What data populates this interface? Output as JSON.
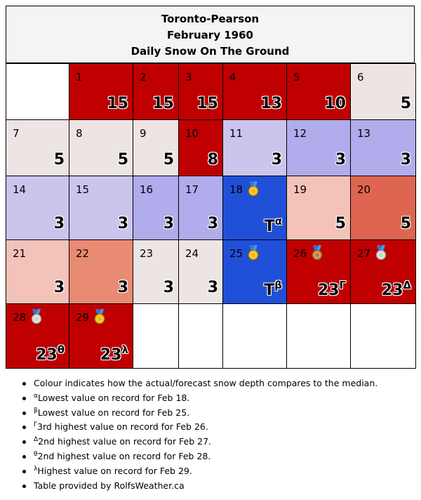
{
  "header": {
    "station": "Toronto-Pearson",
    "month": "February 1960",
    "subtitle": "Daily Snow On The Ground"
  },
  "colors": {
    "blank": "#ffffff",
    "record_high": "#c00000",
    "near_median": "#ede4e4",
    "below_light": "#cbc5ed",
    "below_mid": "#b1aceb",
    "above_light": "#f3c2b8",
    "above_mid": "#e98a73",
    "above_strong": "#de6650",
    "record_low": "#2050d8"
  },
  "calendar": {
    "days": [
      {
        "day": "1",
        "value": "15",
        "sup": "",
        "color": "#c00000",
        "medal": ""
      },
      {
        "day": "2",
        "value": "15",
        "sup": "",
        "color": "#c00000",
        "medal": ""
      },
      {
        "day": "3",
        "value": "15",
        "sup": "",
        "color": "#c00000",
        "medal": ""
      },
      {
        "day": "4",
        "value": "13",
        "sup": "",
        "color": "#c00000",
        "medal": ""
      },
      {
        "day": "5",
        "value": "10",
        "sup": "",
        "color": "#c00000",
        "medal": ""
      },
      {
        "day": "6",
        "value": "5",
        "sup": "",
        "color": "#ede4e4",
        "medal": ""
      },
      {
        "day": "7",
        "value": "5",
        "sup": "",
        "color": "#ede4e4",
        "medal": ""
      },
      {
        "day": "8",
        "value": "5",
        "sup": "",
        "color": "#ede4e4",
        "medal": ""
      },
      {
        "day": "9",
        "value": "5",
        "sup": "",
        "color": "#ede4e4",
        "medal": ""
      },
      {
        "day": "10",
        "value": "8",
        "sup": "",
        "color": "#c00000",
        "medal": ""
      },
      {
        "day": "11",
        "value": "3",
        "sup": "",
        "color": "#cbc5ed",
        "medal": ""
      },
      {
        "day": "12",
        "value": "3",
        "sup": "",
        "color": "#b1aceb",
        "medal": ""
      },
      {
        "day": "13",
        "value": "3",
        "sup": "",
        "color": "#b1aceb",
        "medal": ""
      },
      {
        "day": "14",
        "value": "3",
        "sup": "",
        "color": "#cbc5ed",
        "medal": ""
      },
      {
        "day": "15",
        "value": "3",
        "sup": "",
        "color": "#cbc5ed",
        "medal": ""
      },
      {
        "day": "16",
        "value": "3",
        "sup": "",
        "color": "#b1aceb",
        "medal": ""
      },
      {
        "day": "17",
        "value": "3",
        "sup": "",
        "color": "#b1aceb",
        "medal": ""
      },
      {
        "day": "18",
        "value": "T",
        "sup": "α",
        "color": "#2050d8",
        "medal": "gold"
      },
      {
        "day": "19",
        "value": "5",
        "sup": "",
        "color": "#f3c2b8",
        "medal": ""
      },
      {
        "day": "20",
        "value": "5",
        "sup": "",
        "color": "#de6650",
        "medal": ""
      },
      {
        "day": "21",
        "value": "3",
        "sup": "",
        "color": "#f3c2b8",
        "medal": ""
      },
      {
        "day": "22",
        "value": "3",
        "sup": "",
        "color": "#e98a73",
        "medal": ""
      },
      {
        "day": "23",
        "value": "3",
        "sup": "",
        "color": "#ede4e4",
        "medal": ""
      },
      {
        "day": "24",
        "value": "3",
        "sup": "",
        "color": "#ede4e4",
        "medal": ""
      },
      {
        "day": "25",
        "value": "T",
        "sup": "β",
        "color": "#2050d8",
        "medal": "gold"
      },
      {
        "day": "26",
        "value": "23",
        "sup": "Γ",
        "color": "#c00000",
        "medal": "bronze"
      },
      {
        "day": "27",
        "value": "23",
        "sup": "Δ",
        "color": "#c00000",
        "medal": "silver"
      },
      {
        "day": "28",
        "value": "23",
        "sup": "θ",
        "color": "#c00000",
        "medal": "silver"
      },
      {
        "day": "29",
        "value": "23",
        "sup": "λ",
        "color": "#c00000",
        "medal": "gold"
      }
    ]
  },
  "footnotes": [
    {
      "mark": "",
      "text": "Colour indicates how the actual/forecast snow depth compares to the median."
    },
    {
      "mark": "α",
      "text": "Lowest value on record for Feb 18."
    },
    {
      "mark": "β",
      "text": "Lowest value on record for Feb 25."
    },
    {
      "mark": "Γ",
      "text": "3rd highest value on record for Feb 26."
    },
    {
      "mark": "Δ",
      "text": "2nd highest value on record for Feb 27."
    },
    {
      "mark": "θ",
      "text": "2nd highest value on record for Feb 28."
    },
    {
      "mark": "λ",
      "text": "Highest value on record for Feb 29."
    },
    {
      "mark": "",
      "text": "Table provided by RolfsWeather.ca"
    }
  ]
}
